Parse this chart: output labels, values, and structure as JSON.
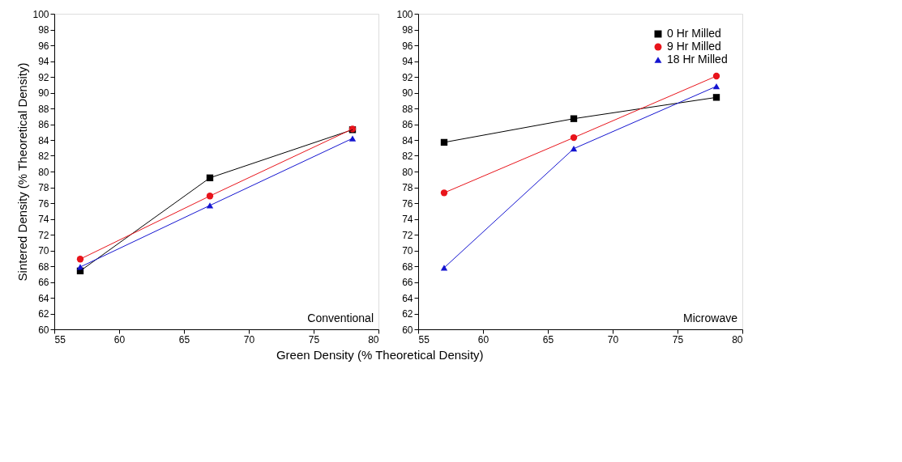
{
  "chart_data": [
    {
      "type": "line",
      "xlabel": "Green Density (% Theoretical Density)",
      "ylabel": "Sintered Density (% Theoretical Density)",
      "annotations": [
        "Conventional"
      ],
      "x": [
        57,
        67,
        78
      ],
      "xlim": [
        55,
        80
      ],
      "xticks": [
        55,
        60,
        65,
        70,
        75,
        80
      ],
      "ylim": [
        60,
        100
      ],
      "yticks": [
        60,
        62,
        64,
        66,
        68,
        70,
        72,
        74,
        76,
        78,
        80,
        82,
        84,
        86,
        88,
        90,
        92,
        94,
        96,
        98,
        100
      ],
      "grid": false,
      "series": [
        {
          "color": "#000000",
          "marker": "square",
          "values": [
            67.4,
            79.2,
            85.3
          ]
        },
        {
          "color": "#e8141b",
          "marker": "circle",
          "values": [
            68.9,
            76.9,
            85.4
          ]
        },
        {
          "color": "#1414d0",
          "marker": "triangle",
          "values": [
            67.9,
            75.7,
            84.2
          ]
        }
      ]
    },
    {
      "type": "line",
      "annotations": [
        "Microwave"
      ],
      "x": [
        57,
        67,
        78
      ],
      "xlim": [
        55,
        80
      ],
      "xticks": [
        55,
        60,
        65,
        70,
        75,
        80
      ],
      "ylim": [
        60,
        100
      ],
      "yticks": [
        60,
        62,
        64,
        66,
        68,
        70,
        72,
        74,
        76,
        78,
        80,
        82,
        84,
        86,
        88,
        90,
        92,
        94,
        96,
        98,
        100
      ],
      "grid": false,
      "legend": "top right",
      "series": [
        {
          "name": "0 Hr Milled",
          "color": "#000000",
          "marker": "square",
          "values": [
            83.7,
            86.7,
            89.4
          ]
        },
        {
          "name": "9 Hr Milled",
          "color": "#e8141b",
          "marker": "circle",
          "values": [
            77.3,
            84.3,
            92.1
          ]
        },
        {
          "name": "18 Hr Milled",
          "color": "#1414d0",
          "marker": "triangle",
          "values": [
            67.8,
            82.9,
            90.8
          ]
        }
      ]
    }
  ]
}
